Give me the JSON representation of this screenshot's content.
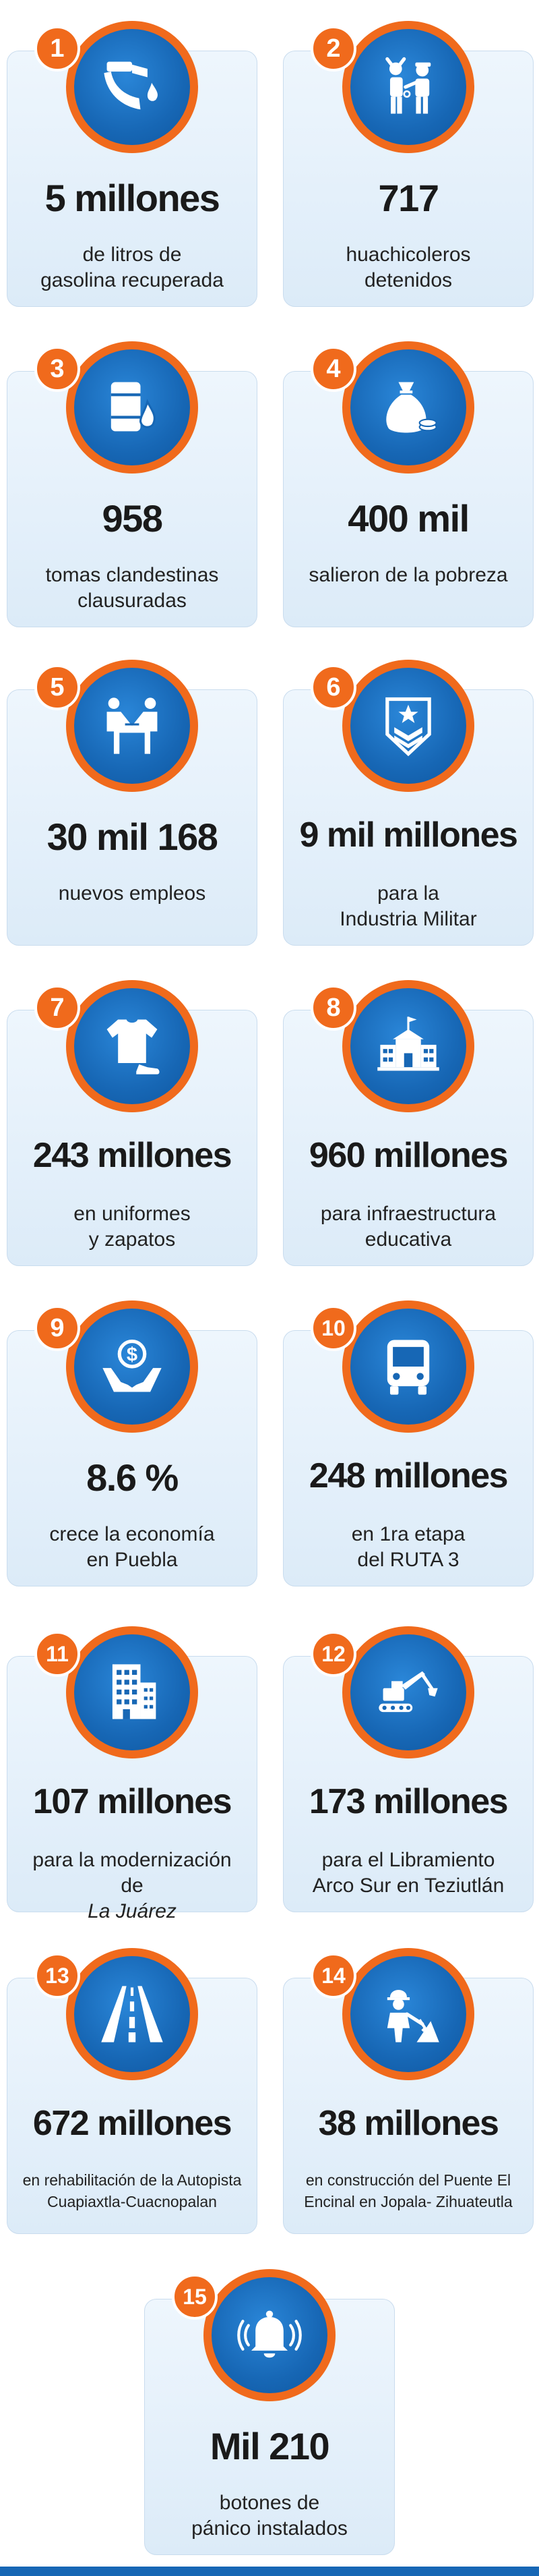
{
  "colors": {
    "accent": "#f06a1c",
    "icon_bg": "#1767b5",
    "card_bg": "#e6f0fa"
  },
  "items": [
    {
      "num": "1",
      "icon": "fuel-nozzle-icon",
      "value": "5 millones",
      "line1": "de litros de",
      "line2": "gasolina recuperada"
    },
    {
      "num": "2",
      "icon": "arrest-icon",
      "value": "717",
      "line1": "huachicoleros",
      "line2": "detenidos"
    },
    {
      "num": "3",
      "icon": "barrel-drop-icon",
      "value": "958",
      "line1": "tomas clandestinas",
      "line2": "clausuradas"
    },
    {
      "num": "4",
      "icon": "money-bag-icon",
      "value": "400 mil",
      "line1": "salieron de la pobreza",
      "line2": ""
    },
    {
      "num": "5",
      "icon": "handshake-icon",
      "value": "30 mil 168",
      "line1": "nuevos empleos",
      "line2": ""
    },
    {
      "num": "6",
      "icon": "military-badge-icon",
      "value": "9 mil millones",
      "line1": "para la",
      "line2": "Industria Militar"
    },
    {
      "num": "7",
      "icon": "uniform-shoe-icon",
      "value": "243 millones",
      "line1": "en uniformes",
      "line2": "y zapatos"
    },
    {
      "num": "8",
      "icon": "school-icon",
      "value": "960 millones",
      "line1": "para infraestructura",
      "line2": "educativa"
    },
    {
      "num": "9",
      "icon": "hands-dollar-icon",
      "value": "8.6 %",
      "line1": "crece la economía",
      "line2": "en Puebla"
    },
    {
      "num": "10",
      "icon": "bus-icon",
      "value": "248 millones",
      "line1": "en 1ra etapa",
      "line2": "del RUTA 3"
    },
    {
      "num": "11",
      "icon": "building-icon",
      "value": "107 millones",
      "line1": "para la modernización",
      "line2a": "de ",
      "line2b": "La Juárez"
    },
    {
      "num": "12",
      "icon": "excavator-icon",
      "value": "173 millones",
      "line1": "para el Libramiento",
      "line2": "Arco Sur en Teziutlán"
    },
    {
      "num": "13",
      "icon": "highway-icon",
      "value": "672 millones",
      "line1": "en rehabilitación de la Autopista",
      "line2": "Cuapiaxtla-Cuacnopalan"
    },
    {
      "num": "14",
      "icon": "construction-worker-icon",
      "value": "38 millones",
      "line1": "en construcción del Puente El",
      "line2": "Encinal en Jopala- Zihuateutla"
    },
    {
      "num": "15",
      "icon": "alarm-bell-icon",
      "value": "Mil 210",
      "line1": "botones de",
      "line2": "pánico instalados"
    }
  ]
}
